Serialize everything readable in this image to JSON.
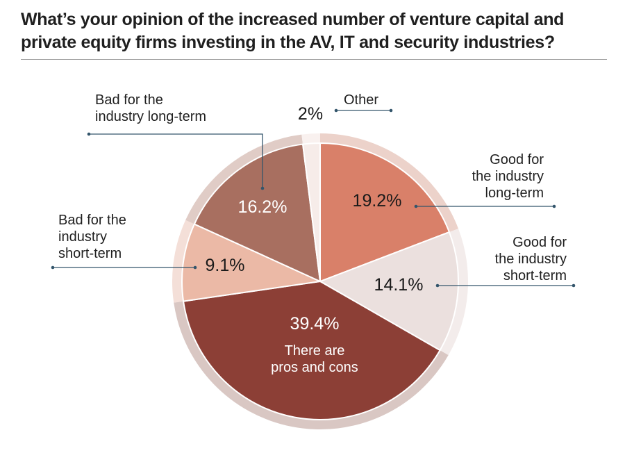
{
  "title": {
    "line1": "What’s your opinion of the increased number of venture capital and",
    "line2": "private equity firms investing in the AV, IT and security industries?"
  },
  "chart_data": {
    "type": "pie",
    "slices": [
      {
        "label": "Good for the industry long-term",
        "lines": [
          "Good for",
          "the industry",
          "long-term"
        ],
        "value": 19.2,
        "display": "19.2%",
        "color": "#d98069",
        "ring": "#ecd2ca"
      },
      {
        "label": "Good for the industry short-term",
        "lines": [
          "Good for",
          "the industry",
          "short-term"
        ],
        "value": 14.1,
        "display": "14.1%",
        "color": "#ebe0de",
        "ring": "#f3eceb"
      },
      {
        "label": "There are pros and cons",
        "lines": [
          "There are",
          "pros and cons"
        ],
        "value": 39.4,
        "display": "39.4%",
        "color": "#8c3f36",
        "ring": "#d9c7c3"
      },
      {
        "label": "Bad for the industry short-term",
        "lines": [
          "Bad for the",
          "industry",
          "short-term"
        ],
        "value": 9.1,
        "display": "9.1%",
        "color": "#ebb9a6",
        "ring": "#f4dfd8"
      },
      {
        "label": "Bad for the industry long-term",
        "lines": [
          "Bad for the",
          "industry long-term"
        ],
        "value": 16.2,
        "display": "16.2%",
        "color": "#a86f60",
        "ring": "#e0ccc6"
      },
      {
        "label": "Other",
        "lines": [
          "Other"
        ],
        "value": 2,
        "display": "2%",
        "color": "#f6ece9",
        "ring": "#f9f1ef"
      }
    ],
    "colors": {
      "leader": "#33556b",
      "title": "#1f1f1f"
    }
  }
}
